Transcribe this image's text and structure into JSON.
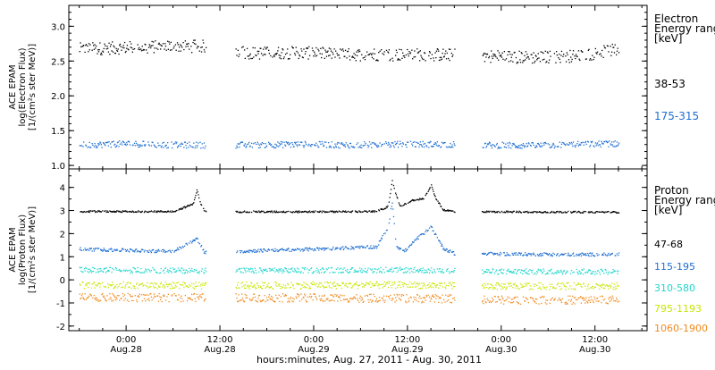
{
  "x_axis_label": "hours:minutes, Aug. 27, 2011 - Aug. 30, 2011",
  "colors": {
    "black": "#000000",
    "blue": "#1f6fd1",
    "cyan": "#20d6cc",
    "yellow": "#c8e600",
    "orange": "#f08a1e"
  },
  "chart_data": [
    {
      "type": "scatter",
      "panel": "electron",
      "ylabel_lines": [
        "ACE EPAM",
        "log(Electron Flux)",
        "[1/(cm²s ster MeV)]"
      ],
      "ylim": [
        0.95,
        3.3
      ],
      "y_ticks": [
        "1.0",
        "1.5",
        "2.0",
        "2.5",
        "3.0"
      ],
      "y_tick_values": [
        1.0,
        1.5,
        2.0,
        2.5,
        3.0
      ],
      "xlim": [
        "2011-08-27T16:40",
        "2011-08-30T18:40"
      ],
      "x_ticks": [
        {
          "t": "2011-08-28T00:00",
          "top": "0:00",
          "bottom": "Aug.28"
        },
        {
          "t": "2011-08-28T12:00",
          "top": "12:00",
          "bottom": "Aug.28"
        },
        {
          "t": "2011-08-29T00:00",
          "top": "0:00",
          "bottom": "Aug.29"
        },
        {
          "t": "2011-08-29T12:00",
          "top": "12:00",
          "bottom": "Aug.29"
        },
        {
          "t": "2011-08-30T00:00",
          "top": "0:00",
          "bottom": "Aug.30"
        },
        {
          "t": "2011-08-30T12:00",
          "top": "12:00",
          "bottom": "Aug.30"
        }
      ],
      "legend_title_lines": [
        "Electron",
        "Energy ranges",
        "[keV]"
      ],
      "data_gaps": [
        [
          "2011-08-28T10:10",
          "2011-08-28T14:00"
        ],
        [
          "2011-08-29T18:00",
          "2011-08-29T21:30"
        ]
      ],
      "data_end": "2011-08-30T15:00",
      "series": [
        {
          "name": "38-53",
          "color": "black",
          "x": [
            "2011-08-27T18:00",
            "2011-08-28T00:00",
            "2011-08-28T06:00",
            "2011-08-28T10:00",
            "2011-08-28T16:00",
            "2011-08-28T22:00",
            "2011-08-29T04:00",
            "2011-08-29T10:00",
            "2011-08-29T16:00",
            "2011-08-29T22:00",
            "2011-08-30T04:00",
            "2011-08-30T10:00",
            "2011-08-30T14:00"
          ],
          "y": [
            2.68,
            2.7,
            2.72,
            2.72,
            2.62,
            2.63,
            2.6,
            2.6,
            2.6,
            2.58,
            2.56,
            2.58,
            2.66
          ]
        },
        {
          "name": "175-315",
          "color": "blue",
          "x": [
            "2011-08-27T18:00",
            "2011-08-28T00:00",
            "2011-08-28T06:00",
            "2011-08-28T10:00",
            "2011-08-28T16:00",
            "2011-08-28T22:00",
            "2011-08-29T04:00",
            "2011-08-29T10:00",
            "2011-08-29T16:00",
            "2011-08-29T22:00",
            "2011-08-30T04:00",
            "2011-08-30T10:00",
            "2011-08-30T14:00"
          ],
          "y": [
            1.3,
            1.32,
            1.3,
            1.3,
            1.3,
            1.31,
            1.3,
            1.31,
            1.31,
            1.3,
            1.29,
            1.31,
            1.32
          ]
        }
      ]
    },
    {
      "type": "scatter",
      "panel": "proton",
      "ylabel_lines": [
        "ACE EPAM",
        "log(Proton Flux)",
        "[1/(cm²s ster MeV)]"
      ],
      "ylim": [
        -2.2,
        4.8
      ],
      "y_ticks": [
        "-2",
        "-1",
        "0",
        "1",
        "2",
        "3",
        "4"
      ],
      "y_tick_values": [
        -2,
        -1,
        0,
        1,
        2,
        3,
        4
      ],
      "xlim": [
        "2011-08-27T16:40",
        "2011-08-30T18:40"
      ],
      "legend_title_lines": [
        "Proton",
        "Energy ranges",
        "[keV]"
      ],
      "data_gaps": [
        [
          "2011-08-28T10:10",
          "2011-08-28T14:00"
        ],
        [
          "2011-08-29T18:00",
          "2011-08-29T21:30"
        ]
      ],
      "data_end": "2011-08-30T15:00",
      "series": [
        {
          "name": "47-68",
          "color": "black",
          "x": [
            "2011-08-27T18:00",
            "2011-08-28T06:00",
            "2011-08-28T08:30",
            "2011-08-28T09:00",
            "2011-08-28T09:30",
            "2011-08-28T10:00",
            "2011-08-28T16:00",
            "2011-08-29T00:00",
            "2011-08-29T08:00",
            "2011-08-29T09:30",
            "2011-08-29T10:00",
            "2011-08-29T10:30",
            "2011-08-29T11:00",
            "2011-08-29T12:30",
            "2011-08-29T14:00",
            "2011-08-29T15:00",
            "2011-08-29T15:30",
            "2011-08-29T16:30",
            "2011-08-29T18:00",
            "2011-08-29T22:00",
            "2011-08-30T06:00",
            "2011-08-30T14:00"
          ],
          "y": [
            2.98,
            2.98,
            3.3,
            3.9,
            3.3,
            2.98,
            2.97,
            2.97,
            2.98,
            3.2,
            4.3,
            3.7,
            3.2,
            3.45,
            3.55,
            4.1,
            3.6,
            3.05,
            2.98,
            2.97,
            2.96,
            2.95
          ]
        },
        {
          "name": "115-195",
          "color": "blue",
          "x": [
            "2011-08-27T18:00",
            "2011-08-28T06:00",
            "2011-08-28T09:00",
            "2011-08-28T10:00",
            "2011-08-28T16:00",
            "2011-08-29T00:00",
            "2011-08-29T08:00",
            "2011-08-29T09:30",
            "2011-08-29T10:00",
            "2011-08-29T10:30",
            "2011-08-29T11:30",
            "2011-08-29T13:30",
            "2011-08-29T15:00",
            "2011-08-29T16:30",
            "2011-08-29T18:00",
            "2011-08-29T22:00",
            "2011-08-30T06:00",
            "2011-08-30T14:00"
          ],
          "y": [
            1.35,
            1.25,
            1.8,
            1.2,
            1.28,
            1.35,
            1.45,
            2.3,
            3.4,
            1.5,
            1.25,
            1.9,
            2.3,
            1.4,
            1.15,
            1.15,
            1.12,
            1.12
          ]
        },
        {
          "name": "310-580",
          "color": "cyan",
          "x": [
            "2011-08-27T18:00",
            "2011-08-28T10:00",
            "2011-08-28T16:00",
            "2011-08-29T10:00",
            "2011-08-29T18:00",
            "2011-08-29T22:00",
            "2011-08-30T14:00"
          ],
          "y": [
            0.45,
            0.42,
            0.42,
            0.45,
            0.42,
            0.38,
            0.38
          ]
        },
        {
          "name": "795-1193",
          "color": "yellow",
          "x": [
            "2011-08-27T18:00",
            "2011-08-28T10:00",
            "2011-08-28T16:00",
            "2011-08-29T10:00",
            "2011-08-29T18:00",
            "2011-08-29T22:00",
            "2011-08-30T14:00"
          ],
          "y": [
            -0.2,
            -0.22,
            -0.22,
            -0.2,
            -0.22,
            -0.25,
            -0.25
          ]
        },
        {
          "name": "1060-1900",
          "color": "orange",
          "x": [
            "2011-08-27T18:00",
            "2011-08-28T10:00",
            "2011-08-28T16:00",
            "2011-08-29T10:00",
            "2011-08-29T18:00",
            "2011-08-29T22:00",
            "2011-08-30T14:00"
          ],
          "y": [
            -0.75,
            -0.75,
            -0.75,
            -0.78,
            -0.8,
            -0.85,
            -0.85
          ]
        }
      ]
    }
  ]
}
